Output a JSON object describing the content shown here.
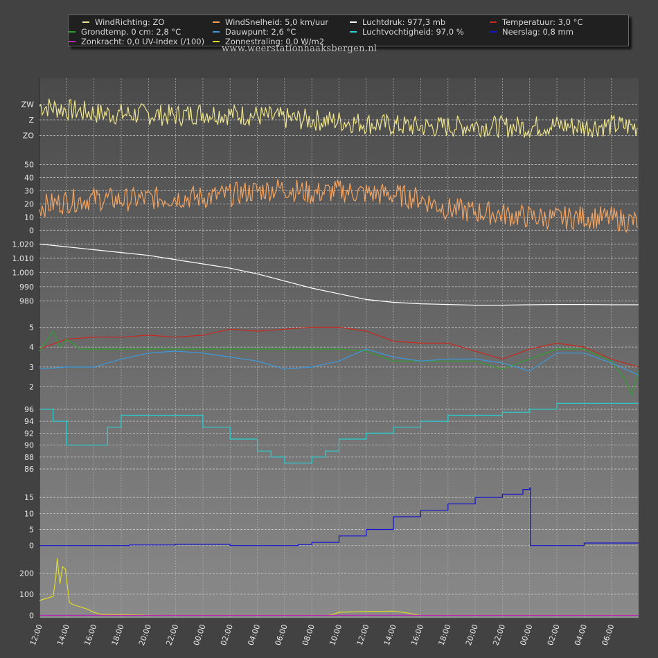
{
  "legend": [
    {
      "key": "winddir",
      "text": "WindRichting: ZO",
      "color": "#f0e68c"
    },
    {
      "key": "windspeed",
      "text": "WindSnelheid: 5,0 km/uur",
      "color": "#f4a460"
    },
    {
      "key": "pressure",
      "text": "Luchtdruk: 977,3 mb",
      "color": "#ffffff"
    },
    {
      "key": "temp",
      "text": "Temperatuur: 3,0 °C",
      "color": "#c8281e"
    },
    {
      "key": "groundtemp",
      "text": "Grondtemp. 0 cm: 2,8 °C",
      "color": "#2ea02e"
    },
    {
      "key": "dewpoint",
      "text": "Dauwpunt: 2,6 °C",
      "color": "#3c9adc"
    },
    {
      "key": "humidity",
      "text": "Luchtvochtigheid: 97,0 %",
      "color": "#28d2d2"
    },
    {
      "key": "rain",
      "text": "Neerslag: 0,8 mm",
      "color": "#1414d2"
    },
    {
      "key": "uv",
      "text": "Zonkracht: 0,0 UV-Index (/100)",
      "color": "#b428b4"
    },
    {
      "key": "solar",
      "text": "Zonnestraling: 0,0 W/m2",
      "color": "#dcdc28"
    }
  ],
  "watermark": "www.weerstationhaaksbergen.nl",
  "chart_data": {
    "type": "line",
    "x_start": "12:00",
    "x_end_note": "",
    "x_ticks": [
      "12:00",
      "14:00",
      "16:00",
      "18:00",
      "20:00",
      "22:00",
      "00:00",
      "02:00",
      "04:00",
      "06:00",
      "08:00",
      "10:00",
      "12:00",
      "14:00",
      "16:00",
      "18:00",
      "20:00",
      "22:00",
      "00:00",
      "02:00",
      "04:00",
      "06:00"
    ],
    "x_hours_total": 44,
    "panels": [
      {
        "name": "winddir",
        "ylim": [
          135,
          240
        ],
        "ticks": [
          {
            "v": 157.5,
            "label": "ZO"
          },
          {
            "v": 180,
            "label": "Z"
          },
          {
            "v": 202.5,
            "label": "ZW"
          }
        ],
        "series": [
          {
            "name": "WindRichting",
            "color": "#f0e68c",
            "x": [
              0,
              2,
              4,
              6,
              8,
              10,
              12,
              14,
              16,
              18,
              20,
              22,
              24,
              26,
              28,
              30,
              32,
              34,
              36,
              38,
              40,
              42,
              44
            ],
            "y": [
              200,
              195,
              190,
              188,
              188,
              186,
              190,
              188,
              186,
              182,
              180,
              178,
              175,
              172,
              170,
              170,
              172,
              170,
              170,
              172,
              170,
              172,
              170
            ]
          }
        ]
      },
      {
        "name": "windspeed",
        "ylim": [
          -3,
          55
        ],
        "ticks": [
          {
            "v": 0,
            "label": "0"
          },
          {
            "v": 10,
            "label": "10"
          },
          {
            "v": 20,
            "label": "20"
          },
          {
            "v": 30,
            "label": "30"
          },
          {
            "v": 40,
            "label": "40"
          },
          {
            "v": 50,
            "label": "50"
          }
        ],
        "series": [
          {
            "name": "WindSnelheid",
            "color": "#f4a460",
            "x": [
              0,
              2,
              4,
              6,
              8,
              10,
              12,
              14,
              16,
              18,
              20,
              22,
              24,
              26,
              28,
              30,
              32,
              34,
              36,
              38,
              40,
              42,
              44
            ],
            "y": [
              18,
              22,
              24,
              23,
              24,
              25,
              25,
              27,
              30,
              32,
              28,
              30,
              28,
              27,
              24,
              16,
              14,
              12,
              10,
              9,
              10,
              9,
              6
            ]
          }
        ]
      },
      {
        "name": "pressure",
        "ylim": [
          970,
          1025
        ],
        "ticks": [
          {
            "v": 980,
            "label": "980"
          },
          {
            "v": 990,
            "label": "990"
          },
          {
            "v": 1000,
            "label": "1.000"
          },
          {
            "v": 1010,
            "label": "1.010"
          },
          {
            "v": 1020,
            "label": "1.020"
          }
        ],
        "series": [
          {
            "name": "Luchtdruk",
            "color": "#ffffff",
            "x": [
              0,
              2,
              4,
              6,
              8,
              10,
              12,
              14,
              16,
              18,
              20,
              22,
              24,
              26,
              28,
              30,
              32,
              34,
              36,
              38,
              40,
              42,
              44
            ],
            "y": [
              1020,
              1018,
              1016,
              1014,
              1012,
              1009,
              1006,
              1003,
              999,
              994,
              989,
              985,
              981,
              979,
              978,
              977.5,
              977,
              977,
              977.3,
              977.5,
              977.5,
              977.3,
              977.3
            ]
          }
        ]
      },
      {
        "name": "temperature",
        "ylim": [
          1.5,
          5.5
        ],
        "ticks": [
          {
            "v": 2,
            "label": "2"
          },
          {
            "v": 3,
            "label": "3"
          },
          {
            "v": 4,
            "label": "4"
          },
          {
            "v": 5,
            "label": "5"
          }
        ],
        "series": [
          {
            "name": "Temperatuur",
            "color": "#c8281e",
            "x": [
              0,
              2,
              4,
              6,
              8,
              10,
              12,
              14,
              16,
              18,
              20,
              22,
              24,
              26,
              28,
              30,
              32,
              34,
              36,
              38,
              40,
              42,
              44
            ],
            "y": [
              3.9,
              4.4,
              4.5,
              4.5,
              4.6,
              4.5,
              4.6,
              4.9,
              4.8,
              4.9,
              5.0,
              5.0,
              4.8,
              4.3,
              4.2,
              4.2,
              3.8,
              3.4,
              3.9,
              4.2,
              4.0,
              3.4,
              3.0
            ]
          },
          {
            "name": "Grondtemp. 0 cm",
            "color": "#2ea02e",
            "x": [
              0,
              1,
              1.5,
              2,
              3,
              4,
              6,
              8,
              10,
              12,
              14,
              16,
              18,
              20,
              22,
              24,
              26,
              28,
              30,
              32,
              34,
              36,
              38,
              40,
              42,
              43,
              43.5,
              44
            ],
            "y": [
              3.8,
              4.8,
              4.0,
              4.4,
              3.9,
              3.9,
              3.9,
              3.9,
              3.9,
              3.9,
              3.9,
              3.9,
              3.9,
              3.9,
              3.9,
              3.8,
              3.3,
              3.3,
              3.3,
              3.3,
              2.9,
              3.4,
              3.9,
              3.9,
              3.3,
              2.4,
              1.6,
              2.8
            ]
          },
          {
            "name": "Dauwpunt",
            "color": "#3c9adc",
            "x": [
              0,
              2,
              4,
              6,
              8,
              10,
              12,
              14,
              16,
              18,
              20,
              22,
              24,
              26,
              28,
              30,
              32,
              34,
              36,
              38,
              40,
              42,
              44
            ],
            "y": [
              2.9,
              3.0,
              3.0,
              3.4,
              3.7,
              3.8,
              3.7,
              3.5,
              3.3,
              2.9,
              3.0,
              3.3,
              3.9,
              3.5,
              3.3,
              3.4,
              3.4,
              3.2,
              2.8,
              3.7,
              3.7,
              3.2,
              2.6
            ]
          }
        ]
      },
      {
        "name": "humidity",
        "ylim": [
          84.5,
          97.5
        ],
        "ticks": [
          {
            "v": 86,
            "label": "86"
          },
          {
            "v": 88,
            "label": "88"
          },
          {
            "v": 90,
            "label": "90"
          },
          {
            "v": 92,
            "label": "92"
          },
          {
            "v": 94,
            "label": "94"
          },
          {
            "v": 96,
            "label": "96"
          }
        ],
        "series": [
          {
            "name": "Luchtvochtigheid",
            "color": "#28d2d2",
            "x": [
              0,
              1,
              2,
              3,
              4,
              5,
              6,
              7,
              8,
              10,
              12,
              14,
              16,
              17,
              18,
              19,
              20,
              21,
              22,
              24,
              26,
              28,
              30,
              32,
              34,
              36,
              37,
              38,
              40,
              42,
              44
            ],
            "y": [
              96,
              94,
              90,
              90,
              90,
              93,
              95,
              95,
              95,
              95,
              93,
              91,
              89,
              88,
              87,
              87,
              88,
              89,
              91,
              92,
              93,
              94,
              95,
              95,
              95.5,
              96,
              96,
              97,
              97,
              97,
              97
            ]
          }
        ]
      },
      {
        "name": "rain",
        "ylim": [
          -2,
          20
        ],
        "ticks": [
          {
            "v": 0,
            "label": "0"
          },
          {
            "v": 5,
            "label": "5"
          },
          {
            "v": 10,
            "label": "10"
          },
          {
            "v": 15,
            "label": "15"
          }
        ],
        "series": [
          {
            "name": "Neerslag",
            "color": "#1414d2",
            "x": [
              0,
              6,
              6.6,
              8,
              10,
              12,
              14,
              16,
              18,
              19,
              20,
              22,
              24,
              26,
              28,
              30,
              32,
              34,
              35.5,
              36,
              36.05,
              38,
              40,
              42,
              44
            ],
            "y": [
              0,
              0,
              0.2,
              0.2,
              0.4,
              0.4,
              0,
              0,
              0,
              0.3,
              1,
              3,
              5,
              9,
              11,
              13,
              15,
              16,
              17.5,
              18,
              0,
              0,
              0.8,
              0.8,
              0.8
            ]
          }
        ]
      },
      {
        "name": "solar",
        "ylim": [
          -15,
          290
        ],
        "ticks": [
          {
            "v": 0,
            "label": "0"
          },
          {
            "v": 100,
            "label": "100"
          },
          {
            "v": 200,
            "label": "200"
          }
        ],
        "series": [
          {
            "name": "Zonnestraling",
            "color": "#dcdc28",
            "x": [
              0,
              0.5,
              1,
              1.2,
              1.3,
              1.5,
              1.7,
              1.9,
              2.2,
              2.5,
              3,
              3.5,
              4,
              4.5,
              9,
              21,
              21.5,
              22,
              24,
              26,
              27,
              27.5,
              28,
              44
            ],
            "y": [
              70,
              80,
              90,
              180,
              270,
              150,
              230,
              220,
              60,
              50,
              40,
              30,
              15,
              5,
              0,
              0,
              3,
              15,
              18,
              20,
              12,
              5,
              0,
              0
            ]
          },
          {
            "name": "Zonkracht",
            "color": "#b428b4",
            "x": [
              0,
              4,
              4.5,
              44
            ],
            "y": [
              0,
              0,
              0,
              0
            ]
          }
        ]
      }
    ]
  }
}
